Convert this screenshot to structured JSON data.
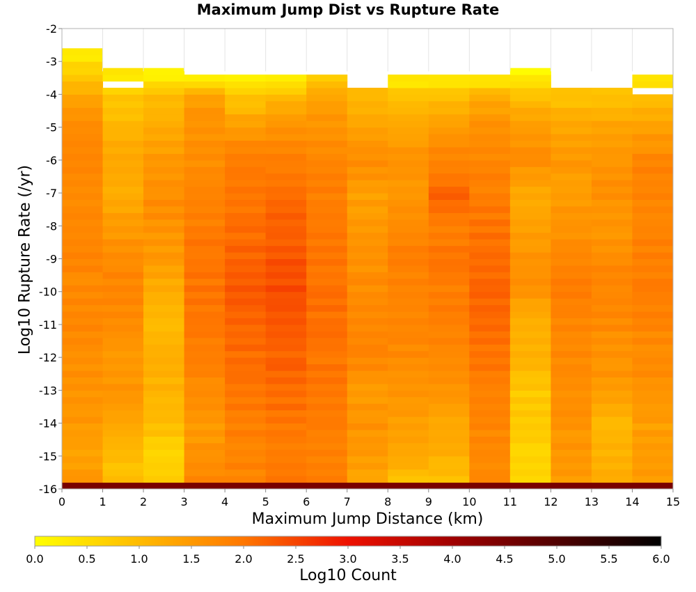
{
  "chart_data": {
    "type": "heatmap",
    "title": "Maximum Jump Dist vs Rupture Rate",
    "xlabel": "Maximum Jump Distance (km)",
    "ylabel": "Log10 Rupture Rate (/yr)",
    "xlim": [
      0,
      15
    ],
    "ylim": [
      -16,
      -2
    ],
    "x_ticks": [
      "0",
      "1",
      "2",
      "3",
      "4",
      "5",
      "6",
      "7",
      "8",
      "9",
      "10",
      "11",
      "12",
      "13",
      "14",
      "15"
    ],
    "y_ticks": [
      "-2",
      "-3",
      "-4",
      "-5",
      "-6",
      "-7",
      "-8",
      "-9",
      "-10",
      "-11",
      "-12",
      "-13",
      "-14",
      "-15",
      "-16"
    ],
    "x_bin_width": 1,
    "y_bin_height": 0.2,
    "y_bins_start": -16,
    "column_tops": [
      -2.7,
      -3.3,
      -3.3,
      -3.5,
      -3.5,
      -3.5,
      -3.5,
      -3.8,
      -3.5,
      -3.5,
      -3.5,
      -3.3,
      -3.8,
      -3.8,
      -3.5
    ],
    "gaps": [
      {
        "column": 1,
        "from": -3.8,
        "to": -3.6
      },
      {
        "column": 14,
        "from": -4.1,
        "to": -3.8
      }
    ],
    "column_profiles": [
      [
        [
          -15.8,
          1.6
        ],
        [
          -15,
          1.4
        ],
        [
          -14,
          1.5
        ],
        [
          -13,
          1.6
        ],
        [
          -12,
          1.6
        ],
        [
          -11,
          1.8
        ],
        [
          -10,
          1.7
        ],
        [
          -9,
          1.8
        ],
        [
          -8,
          1.75
        ],
        [
          -7,
          1.7
        ],
        [
          -6,
          1.8
        ],
        [
          -5,
          1.7
        ],
        [
          -4.2,
          1.4
        ],
        [
          -3.6,
          1.0
        ],
        [
          -2.8,
          0.3
        ]
      ],
      [
        [
          -15.8,
          0.9
        ],
        [
          -15,
          1.0
        ],
        [
          -14,
          1.3
        ],
        [
          -13,
          1.6
        ],
        [
          -12,
          1.5
        ],
        [
          -11,
          1.7
        ],
        [
          -10,
          1.8
        ],
        [
          -9,
          1.7
        ],
        [
          -8,
          1.5
        ],
        [
          -7,
          1.2
        ],
        [
          -6,
          1.35
        ],
        [
          -5,
          1.1
        ],
        [
          -4,
          0.8
        ],
        [
          -3.4,
          0.3
        ]
      ],
      [
        [
          -15.8,
          0.8
        ],
        [
          -15,
          0.6
        ],
        [
          -14,
          1.0
        ],
        [
          -13,
          1.1
        ],
        [
          -12,
          1.2
        ],
        [
          -11,
          1.0
        ],
        [
          -10,
          1.2
        ],
        [
          -9,
          1.5
        ],
        [
          -8,
          1.6
        ],
        [
          -7,
          1.7
        ],
        [
          -6,
          1.5
        ],
        [
          -5,
          1.2
        ],
        [
          -4,
          1.0
        ],
        [
          -3.4,
          0.1
        ]
      ],
      [
        [
          -15.8,
          1.8
        ],
        [
          -15,
          1.6
        ],
        [
          -14,
          1.5
        ],
        [
          -13,
          1.7
        ],
        [
          -12,
          1.9
        ],
        [
          -11,
          2.0
        ],
        [
          -10,
          2.0
        ],
        [
          -9,
          2.0
        ],
        [
          -8,
          1.9
        ],
        [
          -7,
          1.8
        ],
        [
          -6,
          1.7
        ],
        [
          -5,
          1.6
        ],
        [
          -4,
          1.4
        ],
        [
          -3.6,
          0.3
        ]
      ],
      [
        [
          -15.8,
          1.8
        ],
        [
          -15,
          1.8
        ],
        [
          -14,
          1.9
        ],
        [
          -13,
          2.0
        ],
        [
          -12,
          2.1
        ],
        [
          -11,
          2.2
        ],
        [
          -10,
          2.3
        ],
        [
          -9,
          2.2
        ],
        [
          -8,
          2.1
        ],
        [
          -7,
          2.0
        ],
        [
          -6,
          1.9
        ],
        [
          -5,
          1.5
        ],
        [
          -4,
          0.8
        ],
        [
          -3.6,
          0.3
        ]
      ],
      [
        [
          -15.8,
          2.0
        ],
        [
          -15,
          1.9
        ],
        [
          -14,
          2.0
        ],
        [
          -13,
          2.1
        ],
        [
          -12,
          2.2
        ],
        [
          -11,
          2.35
        ],
        [
          -10,
          2.45
        ],
        [
          -9,
          2.35
        ],
        [
          -8,
          2.2
        ],
        [
          -7,
          2.1
        ],
        [
          -6,
          1.9
        ],
        [
          -5,
          1.6
        ],
        [
          -4,
          1.0
        ],
        [
          -3.6,
          0.3
        ]
      ],
      [
        [
          -15.8,
          1.9
        ],
        [
          -15,
          1.8
        ],
        [
          -14,
          1.9
        ],
        [
          -13,
          2.0
        ],
        [
          -12,
          2.0
        ],
        [
          -11,
          2.1
        ],
        [
          -10,
          2.05
        ],
        [
          -9,
          2.0
        ],
        [
          -8,
          1.95
        ],
        [
          -7,
          1.9
        ],
        [
          -6,
          1.8
        ],
        [
          -5,
          1.6
        ],
        [
          -4,
          1.3
        ],
        [
          -3.6,
          0.8
        ]
      ],
      [
        [
          -15.8,
          1.3
        ],
        [
          -15,
          1.5
        ],
        [
          -14,
          1.6
        ],
        [
          -13,
          1.5
        ],
        [
          -12,
          1.8
        ],
        [
          -11,
          1.8
        ],
        [
          -10,
          1.7
        ],
        [
          -9,
          1.6
        ],
        [
          -8,
          1.5
        ],
        [
          -7,
          1.4
        ],
        [
          -6,
          1.7
        ],
        [
          -5,
          1.4
        ],
        [
          -4,
          1.0
        ]
      ],
      [
        [
          -15.8,
          0.9
        ],
        [
          -15,
          1.3
        ],
        [
          -14,
          1.4
        ],
        [
          -13,
          1.6
        ],
        [
          -12,
          1.7
        ],
        [
          -11,
          1.8
        ],
        [
          -10,
          1.8
        ],
        [
          -9,
          1.9
        ],
        [
          -8,
          1.7
        ],
        [
          -7,
          1.5
        ],
        [
          -6,
          1.6
        ],
        [
          -5,
          1.3
        ],
        [
          -4,
          0.9
        ],
        [
          -3.6,
          0.3
        ]
      ],
      [
        [
          -15.8,
          0.9
        ],
        [
          -15,
          1.2
        ],
        [
          -14,
          1.3
        ],
        [
          -13,
          1.6
        ],
        [
          -12,
          1.7
        ],
        [
          -11,
          1.9
        ],
        [
          -10,
          1.9
        ],
        [
          -9,
          2.0
        ],
        [
          -8,
          1.9
        ],
        [
          -7,
          2.2
        ],
        [
          -6,
          1.8
        ],
        [
          -5,
          1.5
        ],
        [
          -4,
          0.9
        ],
        [
          -3.6,
          0.3
        ]
      ],
      [
        [
          -15.8,
          1.8
        ],
        [
          -15,
          1.7
        ],
        [
          -14,
          1.8
        ],
        [
          -13,
          1.9
        ],
        [
          -12,
          2.0
        ],
        [
          -11,
          2.2
        ],
        [
          -10,
          2.2
        ],
        [
          -9,
          2.1
        ],
        [
          -8,
          2.0
        ],
        [
          -7,
          1.9
        ],
        [
          -6,
          1.8
        ],
        [
          -5,
          1.6
        ],
        [
          -4,
          1.2
        ],
        [
          -3.6,
          0.3
        ]
      ],
      [
        [
          -15.8,
          0.6
        ],
        [
          -15,
          0.6
        ],
        [
          -14,
          0.8
        ],
        [
          -13,
          0.8
        ],
        [
          -12,
          1.2
        ],
        [
          -11,
          1.1
        ],
        [
          -10,
          1.6
        ],
        [
          -9,
          1.6
        ],
        [
          -8,
          1.4
        ],
        [
          -7,
          1.2
        ],
        [
          -6,
          1.7
        ],
        [
          -5,
          1.5
        ],
        [
          -4,
          0.9
        ],
        [
          -3.4,
          0.15
        ]
      ],
      [
        [
          -15.8,
          1.5
        ],
        [
          -15,
          1.5
        ],
        [
          -14,
          1.6
        ],
        [
          -13,
          1.7
        ],
        [
          -12,
          1.7
        ],
        [
          -11,
          1.8
        ],
        [
          -10,
          1.9
        ],
        [
          -9,
          1.8
        ],
        [
          -8,
          1.6
        ],
        [
          -7,
          1.4
        ],
        [
          -6,
          1.5
        ],
        [
          -5,
          1.3
        ],
        [
          -4,
          0.9
        ]
      ],
      [
        [
          -15.8,
          1.2
        ],
        [
          -15,
          1.2
        ],
        [
          -14,
          1.0
        ],
        [
          -13,
          1.5
        ],
        [
          -12,
          1.6
        ],
        [
          -11,
          1.7
        ],
        [
          -10,
          1.8
        ],
        [
          -9,
          1.7
        ],
        [
          -8,
          1.5
        ],
        [
          -7,
          1.6
        ],
        [
          -6,
          1.6
        ],
        [
          -5,
          1.4
        ],
        [
          -4,
          0.8
        ]
      ],
      [
        [
          -15.8,
          1.4
        ],
        [
          -15,
          1.5
        ],
        [
          -14,
          1.4
        ],
        [
          -13,
          1.6
        ],
        [
          -12,
          1.7
        ],
        [
          -11,
          1.8
        ],
        [
          -10,
          1.9
        ],
        [
          -9,
          1.9
        ],
        [
          -8,
          1.8
        ],
        [
          -7,
          1.8
        ],
        [
          -6,
          1.8
        ],
        [
          -5,
          1.4
        ],
        [
          -4.2,
          1.0
        ],
        [
          -3.6,
          0.3
        ]
      ]
    ],
    "bottom_row": {
      "y": -16,
      "value": 4.5
    },
    "colorbar": {
      "label": "Log10 Count",
      "min": 0.0,
      "max": 6.0,
      "ticks": [
        "0.0",
        "0.5",
        "1.0",
        "1.5",
        "2.0",
        "2.5",
        "3.0",
        "3.5",
        "4.0",
        "4.5",
        "5.0",
        "5.5",
        "6.0"
      ],
      "stops": [
        {
          "v": 0.0,
          "color": "#ffff00"
        },
        {
          "v": 1.0,
          "color": "#ffbb00"
        },
        {
          "v": 2.0,
          "color": "#ff7700"
        },
        {
          "v": 3.0,
          "color": "#ee1100"
        },
        {
          "v": 4.0,
          "color": "#a00000"
        },
        {
          "v": 5.0,
          "color": "#500000"
        },
        {
          "v": 6.0,
          "color": "#000000"
        }
      ]
    }
  }
}
